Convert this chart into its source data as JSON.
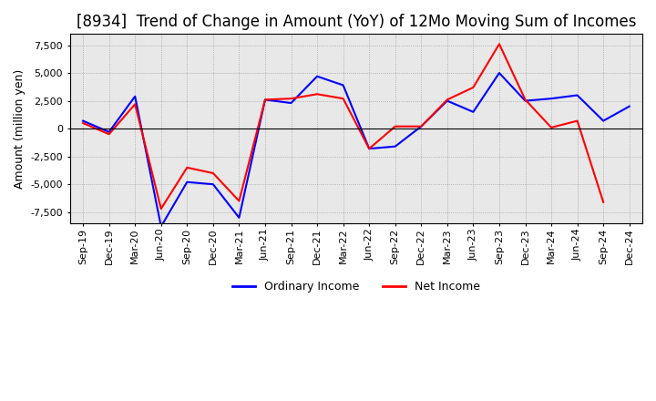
{
  "title": "[8934]  Trend of Change in Amount (YoY) of 12Mo Moving Sum of Incomes",
  "ylabel": "Amount (million yen)",
  "ylim": [
    -8500,
    8500
  ],
  "yticks": [
    -7500,
    -5000,
    -2500,
    0,
    2500,
    5000,
    7500
  ],
  "x_labels": [
    "Sep-19",
    "Dec-19",
    "Mar-20",
    "Jun-20",
    "Sep-20",
    "Dec-20",
    "Mar-21",
    "Jun-21",
    "Sep-21",
    "Dec-21",
    "Mar-22",
    "Jun-22",
    "Sep-22",
    "Dec-22",
    "Mar-23",
    "Jun-23",
    "Sep-23",
    "Dec-23",
    "Mar-24",
    "Jun-24",
    "Sep-24",
    "Dec-24"
  ],
  "ordinary_income": [
    700,
    -300,
    2900,
    -8800,
    -4800,
    -5000,
    -8000,
    2600,
    2300,
    4700,
    3900,
    -1800,
    -1600,
    200,
    2500,
    1500,
    5000,
    2500,
    2700,
    3000,
    700,
    2000
  ],
  "net_income": [
    500,
    -500,
    2200,
    -7200,
    -3500,
    -4000,
    -6500,
    2600,
    2700,
    3100,
    2700,
    -1800,
    200,
    200,
    2600,
    3700,
    7600,
    2600,
    100,
    700,
    -6600,
    null
  ],
  "ordinary_color": "#0000FF",
  "net_color": "#FF0000",
  "plot_bg_color": "#E8E8E8",
  "background_color": "#FFFFFF",
  "grid_color": "#555555",
  "title_fontsize": 12,
  "tick_fontsize": 8,
  "legend_labels": [
    "Ordinary Income",
    "Net Income"
  ]
}
